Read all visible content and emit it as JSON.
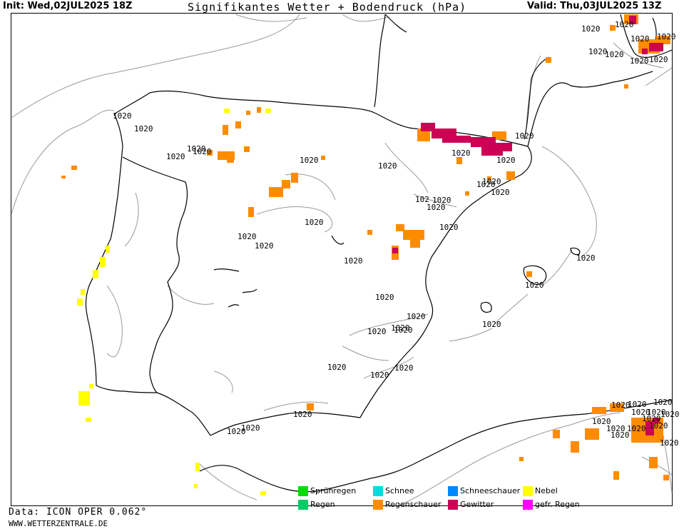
{
  "header": {
    "init": "Init: Wed,02JUL2025 18Z",
    "title": "Signifikantes Wetter +  Bodendruck (hPa)",
    "valid": "Valid: Thu,03JUL2025 13Z"
  },
  "footer": {
    "data": "Data: ICON OPER 0.062°",
    "site": "WWW.WETTERZENTRALE.DE"
  },
  "isobar_labels": [
    "1020",
    "1020",
    "1020",
    "1020",
    "1020",
    "1020",
    "1020",
    "1020",
    "1020",
    "1020",
    "1020",
    "1020",
    "1020",
    "1020",
    "1020",
    "1020",
    "1020",
    "1020",
    "1020",
    "1020",
    "1020",
    "1020",
    "1020",
    "1020",
    "1020",
    "1020",
    "1020",
    "1020",
    "1020",
    "1020",
    "1020",
    "1020",
    "1020",
    "1020",
    "1020",
    "1020",
    "1020",
    "1020",
    "1020",
    "1020",
    "1020",
    "1020",
    "1020",
    "1020",
    "1020",
    "1020",
    "1020",
    "1020",
    "1020",
    "1020",
    "1020",
    "1020",
    "1020",
    "1020",
    "102",
    "1020"
  ],
  "legend": [
    {
      "label": "Sprühregen",
      "color": "#00dd00"
    },
    {
      "label": "Regen",
      "color": "#00cc66"
    },
    {
      "label": "Schnee",
      "color": "#00dddd"
    },
    {
      "label": "Regenschauer",
      "color": "#ff8c00"
    },
    {
      "label": "Schneeschauer",
      "color": "#0088ff"
    },
    {
      "label": "Gewitter",
      "color": "#cc0055"
    },
    {
      "label": "Nebel",
      "color": "#ffff00"
    },
    {
      "label": "gefr. Regen",
      "color": "#ff00ff"
    }
  ],
  "colors": {
    "coast": "#000000",
    "isobar": "#999999",
    "showers": "#ff8c00",
    "thunderstorm": "#cc0055",
    "fog": "#ffff00"
  }
}
